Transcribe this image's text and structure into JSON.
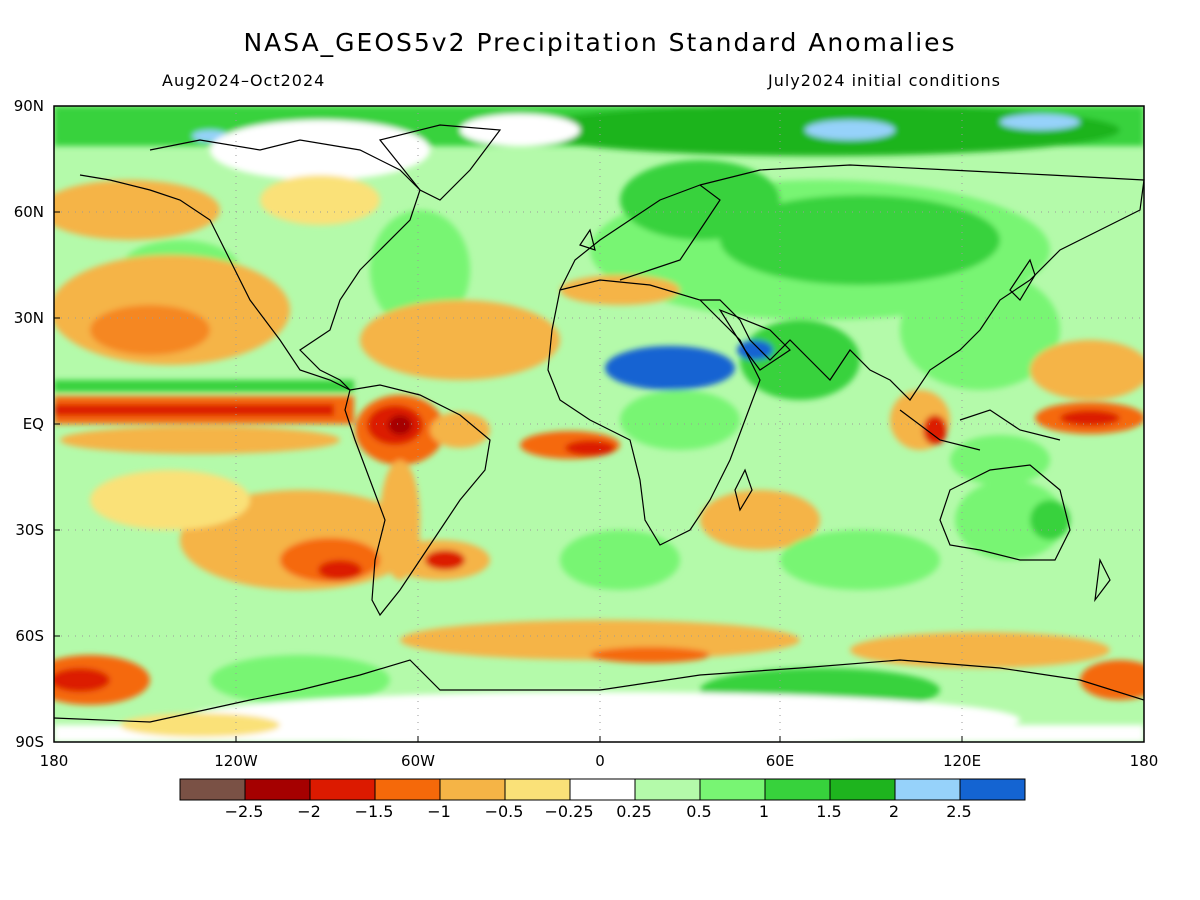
{
  "title": "NASA_GEOS5v2 Precipitation Standard Anomalies",
  "subtitle_left": "Aug2024–Oct2024",
  "subtitle_right": "July2024 initial conditions",
  "lat_labels": [
    "90N",
    "60N",
    "30N",
    "EQ",
    "30S",
    "60S",
    "90S"
  ],
  "lon_labels": [
    "180",
    "120W",
    "60W",
    "0",
    "60E",
    "120E",
    "180"
  ],
  "colorbar": {
    "colors": [
      "#7a5145",
      "#a50000",
      "#dc1a00",
      "#f5690a",
      "#f5b446",
      "#fae178",
      "#ffffff",
      "#b4faaa",
      "#78f573",
      "#37d23c",
      "#1eb41e",
      "#96d2fa",
      "#1464d2"
    ],
    "labels": [
      "−2.5",
      "−2",
      "−1.5",
      "−1",
      "−0.5",
      "−0.25",
      "0.25",
      "0.5",
      "1",
      "1.5",
      "2",
      "2.5"
    ]
  },
  "colors": {
    "frame": "#000000",
    "coast": "#000000",
    "gridline": "#9a9a9a"
  }
}
